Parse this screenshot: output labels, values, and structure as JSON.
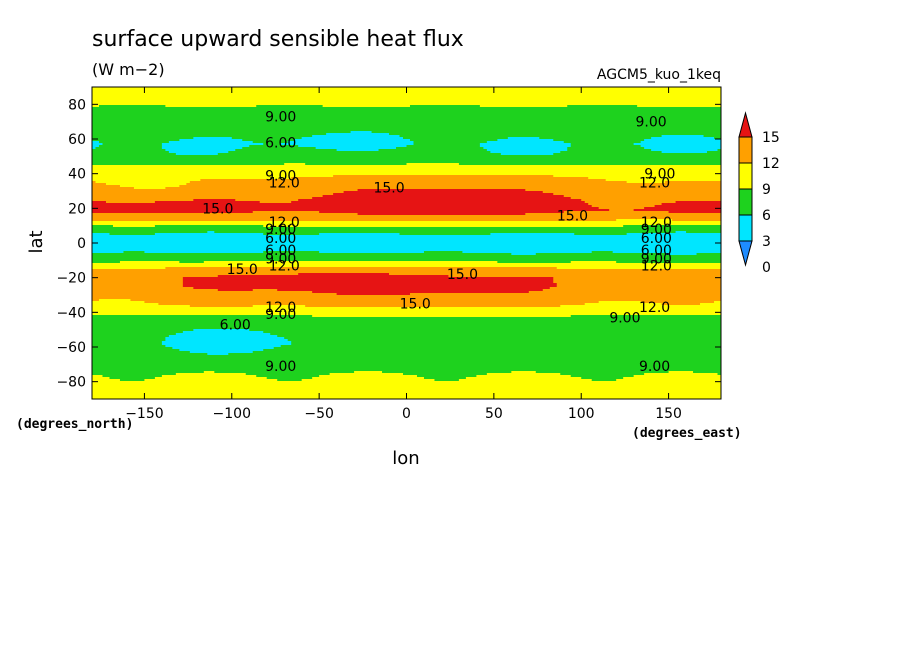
{
  "chart_data": {
    "type": "heatmap",
    "title": "surface upward sensible heat flux",
    "units": "(W m−2)",
    "run_label": "AGCM5_kuo_1keq",
    "xlabel": "lon",
    "ylabel": "lat",
    "x_unit_label": "(degrees_east)",
    "y_unit_label": "(degrees_north)",
    "xlim": [
      -180,
      180
    ],
    "ylim": [
      -90,
      90
    ],
    "x_ticks": [
      -150,
      -100,
      -50,
      0,
      50,
      100,
      150
    ],
    "x_tick_labels": [
      "−150",
      "−100",
      "−50",
      "0",
      "50",
      "100",
      "150"
    ],
    "y_ticks": [
      80,
      60,
      40,
      20,
      0,
      -20,
      -40,
      -60,
      -80
    ],
    "y_tick_labels": [
      "80",
      "60",
      "40",
      "20",
      "0",
      "−20",
      "−40",
      "−60",
      "−80"
    ],
    "levels": [
      0,
      3,
      6,
      9,
      12,
      15
    ],
    "colorbar_labels": [
      "0",
      "3",
      "6",
      "9",
      "12",
      "15"
    ],
    "colors": {
      "below_0": "#1e8cff",
      "0-3": "#1e8cff",
      "3-6": "#00e6ff",
      "6-9": "#1ed21e",
      "9-12": "#ffff00",
      "12-15": "#ffa000",
      "above_15": "#e61414"
    },
    "grid": false,
    "legend": "right",
    "lat_profile": [
      {
        "lat": 90,
        "v": 9.5
      },
      {
        "lat": 80,
        "v": 9.3
      },
      {
        "lat": 73,
        "v": 7.5
      },
      {
        "lat": 64,
        "v": 6.5
      },
      {
        "lat": 57,
        "v": 6.2
      },
      {
        "lat": 50,
        "v": 7.2
      },
      {
        "lat": 44,
        "v": 9.5
      },
      {
        "lat": 38,
        "v": 12.0
      },
      {
        "lat": 31,
        "v": 13.5
      },
      {
        "lat": 25,
        "v": 14.8
      },
      {
        "lat": 19,
        "v": 15.0
      },
      {
        "lat": 14,
        "v": 12.5
      },
      {
        "lat": 10,
        "v": 9.0
      },
      {
        "lat": 7,
        "v": 6.5
      },
      {
        "lat": 3,
        "v": 5.0
      },
      {
        "lat": 0,
        "v": 4.5
      },
      {
        "lat": -3,
        "v": 4.8
      },
      {
        "lat": -7,
        "v": 6.5
      },
      {
        "lat": -11,
        "v": 9.0
      },
      {
        "lat": -15,
        "v": 12.5
      },
      {
        "lat": -20,
        "v": 14.8
      },
      {
        "lat": -25,
        "v": 14.8
      },
      {
        "lat": -30,
        "v": 13.5
      },
      {
        "lat": -36,
        "v": 12.0
      },
      {
        "lat": -42,
        "v": 9.0
      },
      {
        "lat": -50,
        "v": 7.0
      },
      {
        "lat": -58,
        "v": 6.5
      },
      {
        "lat": -66,
        "v": 7.0
      },
      {
        "lat": -73,
        "v": 8.8
      },
      {
        "lat": -80,
        "v": 9.3
      },
      {
        "lat": -90,
        "v": 9.5
      }
    ],
    "anomalies": [
      {
        "lon": 20,
        "lat": 24,
        "dlon": 45,
        "dlat": 9,
        "amp": 2.5
      },
      {
        "lon": -130,
        "lat": 20,
        "dlon": 30,
        "dlat": 4,
        "amp": 1.5
      },
      {
        "lon": 170,
        "lat": 20,
        "dlon": 15,
        "dlat": 4,
        "amp": 1.2
      },
      {
        "lon": -130,
        "lat": 30,
        "dlon": 30,
        "dlat": 5,
        "amp": -1.4
      },
      {
        "lon": 150,
        "lat": 30,
        "dlon": 25,
        "dlat": 5,
        "amp": -1.4
      },
      {
        "lon": -50,
        "lat": -22,
        "dlon": 40,
        "dlat": 8,
        "amp": 1.5
      },
      {
        "lon": 30,
        "lat": -28,
        "dlon": 40,
        "dlat": 7,
        "amp": 1.3
      },
      {
        "lon": 140,
        "lat": -25,
        "dlon": 30,
        "dlat": 6,
        "amp": -1.6
      },
      {
        "lon": -170,
        "lat": -25,
        "dlon": 20,
        "dlat": 6,
        "amp": -1.2
      },
      {
        "lon": -100,
        "lat": -56,
        "dlon": 30,
        "dlat": 6,
        "amp": -1.7
      },
      {
        "lon": -125,
        "lat": 52,
        "dlon": 22,
        "dlat": 4,
        "amp": -1.0
      },
      {
        "lon": -40,
        "lat": 58,
        "dlon": 28,
        "dlat": 4,
        "amp": -1.0
      },
      {
        "lon": 70,
        "lat": 52,
        "dlon": 30,
        "dlat": 4,
        "amp": -1.0
      },
      {
        "lon": 160,
        "lat": 55,
        "dlon": 18,
        "dlat": 4,
        "amp": -1.0
      }
    ],
    "contour_labels": [
      {
        "text": "9.00",
        "lon": -72,
        "lat": 73
      },
      {
        "text": "9.00",
        "lon": 140,
        "lat": 70
      },
      {
        "text": "6.00",
        "lon": -72,
        "lat": 58
      },
      {
        "text": "9.00",
        "lon": -72,
        "lat": 39
      },
      {
        "text": "12.0",
        "lon": -70,
        "lat": 35
      },
      {
        "text": "9.00",
        "lon": 145,
        "lat": 40
      },
      {
        "text": "12.0",
        "lon": 142,
        "lat": 35
      },
      {
        "text": "15.0",
        "lon": -10,
        "lat": 32
      },
      {
        "text": "15.0",
        "lon": -108,
        "lat": 20
      },
      {
        "text": "15.0",
        "lon": 95,
        "lat": 16
      },
      {
        "text": "12.0",
        "lon": -70,
        "lat": 12
      },
      {
        "text": "12.0",
        "lon": 143,
        "lat": 12
      },
      {
        "text": "9.00",
        "lon": -72,
        "lat": 8
      },
      {
        "text": "9.00",
        "lon": 143,
        "lat": 8
      },
      {
        "text": "6.00",
        "lon": -72,
        "lat": 3
      },
      {
        "text": "6.00",
        "lon": 143,
        "lat": 3
      },
      {
        "text": "6.00",
        "lon": -72,
        "lat": -4
      },
      {
        "text": "6.00",
        "lon": 143,
        "lat": -4
      },
      {
        "text": "9.00",
        "lon": -72,
        "lat": -9
      },
      {
        "text": "9.00",
        "lon": 143,
        "lat": -9
      },
      {
        "text": "12.0",
        "lon": -70,
        "lat": -13
      },
      {
        "text": "12.0",
        "lon": 143,
        "lat": -13
      },
      {
        "text": "15.0",
        "lon": -94,
        "lat": -15
      },
      {
        "text": "15.0",
        "lon": 32,
        "lat": -18
      },
      {
        "text": "15.0",
        "lon": 5,
        "lat": -35
      },
      {
        "text": "12.0",
        "lon": -72,
        "lat": -37
      },
      {
        "text": "9.00",
        "lon": -72,
        "lat": -41
      },
      {
        "text": "12.0",
        "lon": 142,
        "lat": -37
      },
      {
        "text": "9.00",
        "lon": 125,
        "lat": -43
      },
      {
        "text": "6.00",
        "lon": -98,
        "lat": -47
      },
      {
        "text": "9.00",
        "lon": -72,
        "lat": -71
      },
      {
        "text": "9.00",
        "lon": 142,
        "lat": -71
      }
    ]
  }
}
